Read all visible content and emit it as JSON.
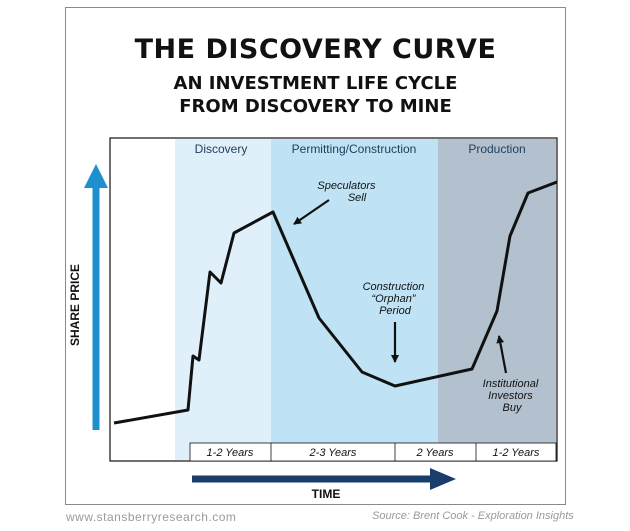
{
  "title": "THE DISCOVERY CURVE",
  "subtitle_line1": "AN INVESTMENT LIFE CYCLE",
  "subtitle_line2": "FROM DISCOVERY TO MINE",
  "colors": {
    "discovery_band": "#dff0fa",
    "permitting_band": "#bfe3f4",
    "production_band": "#b3c1cf",
    "axis_arrow": "#1e90d0",
    "time_arrow": "#1a3d6b",
    "curve": "#111111"
  },
  "chart_data": {
    "type": "line",
    "title": "THE DISCOVERY CURVE",
    "xlabel": "TIME",
    "ylabel": "SHARE PRICE",
    "phases": [
      {
        "name": "Discovery"
      },
      {
        "name": "Permitting/Construction"
      },
      {
        "name": "Production"
      }
    ],
    "durations": [
      "1-2 Years",
      "2-3 Years",
      "2 Years",
      "1-2 Years"
    ],
    "annotations": [
      {
        "lines": [
          "Speculators",
          "Sell"
        ]
      },
      {
        "lines": [
          "Construction",
          "“Orphan”",
          "Period"
        ]
      },
      {
        "lines": [
          "Institutional",
          "Investors",
          "Buy"
        ]
      }
    ]
  },
  "footer": {
    "website": "www.stansberryresearch.com",
    "source": "Source: Brent Cook - Exploration Insights"
  }
}
